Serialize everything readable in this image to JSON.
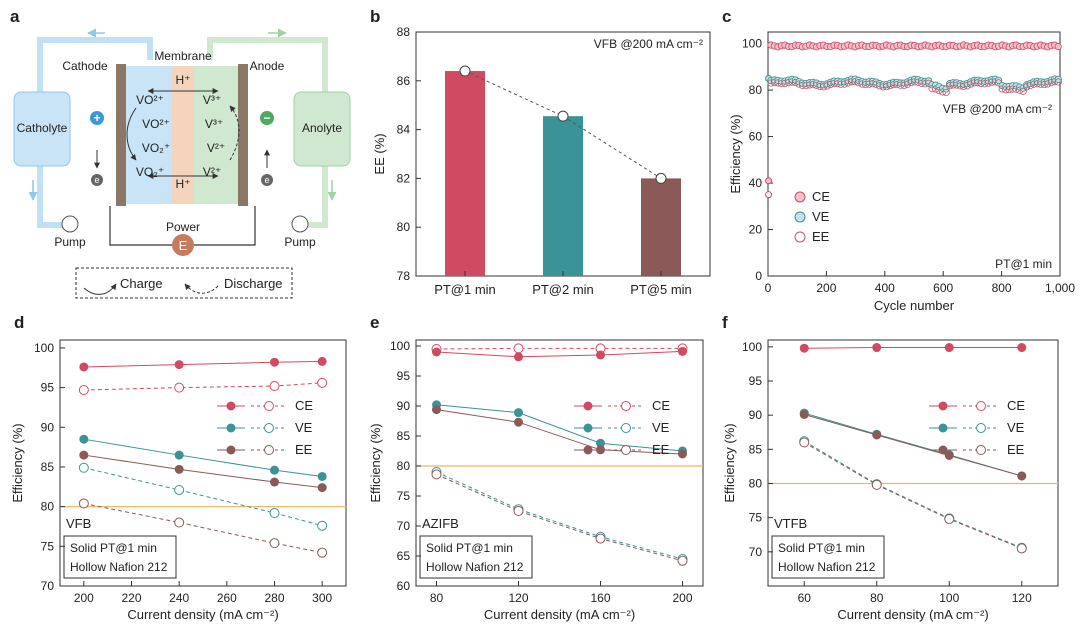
{
  "panels": {
    "a": {
      "label": "a",
      "cathode": "Cathode",
      "anode": "Anode",
      "membrane": "Membrane",
      "catholyte": "Catholyte",
      "anolyte": "Anolyte",
      "pump_left": "Pump",
      "pump_right": "Pump",
      "power": "Power",
      "power_symbol": "E",
      "plus": "+",
      "minus": "−",
      "electron": "e",
      "h_top": "H⁺",
      "h_bottom": "H⁺",
      "left_species": [
        "VO²⁺",
        "VO²⁺",
        "VO₂⁺",
        "VO₂⁺"
      ],
      "right_species": [
        "V³⁺",
        "V³⁺",
        "V²⁺",
        "V²⁺"
      ],
      "legend_charge": "Charge",
      "legend_discharge": "Discharge",
      "colors": {
        "cathode": "#c9e4f6",
        "anode": "#cfe8cf",
        "membrane": "#f5d4bd",
        "electrode": "#8a7766",
        "power": "#c87a60"
      }
    }
  },
  "chart_data": [
    {
      "id": "b",
      "label": "b",
      "type": "bar",
      "title": "VFB @200 mA cm⁻²",
      "xlabel": "",
      "ylabel": "EE (%)",
      "categories": [
        "PT@1 min",
        "PT@2 min",
        "PT@5 min"
      ],
      "values": [
        86.4,
        84.55,
        82.0
      ],
      "colors": [
        "#d04a62",
        "#3a9397",
        "#8b5a58"
      ],
      "ylim": [
        78,
        88
      ],
      "yticks": [
        78,
        80,
        82,
        84,
        86,
        88
      ]
    },
    {
      "id": "c",
      "label": "c",
      "type": "scatter",
      "title": "VFB @200 mA cm⁻²",
      "annotation": "PT@1 min",
      "xlabel": "Cycle number",
      "ylabel": "Efficiency (%)",
      "xlim": [
        0,
        1000
      ],
      "ylim": [
        0,
        105
      ],
      "xticks": [
        0,
        200,
        400,
        600,
        800,
        1000
      ],
      "xtick_labels": [
        "0",
        "200",
        "400",
        "600",
        "800",
        "1,000"
      ],
      "yticks": [
        0,
        20,
        40,
        60,
        80,
        100
      ],
      "series": [
        {
          "name": "CE",
          "approx_mean": 99,
          "first_cycle": 41,
          "color": "#d04a62",
          "fill": "#f2c0c8"
        },
        {
          "name": "VE",
          "approx_mean": 83.5,
          "first_cycle": 85,
          "color": "#3a9397",
          "fill": "#c5e3e4"
        },
        {
          "name": "EE",
          "approx_mean": 82.5,
          "first_cycle": 35,
          "color": "#c0566a",
          "fill": "#ffffff"
        }
      ],
      "legend": [
        "CE",
        "VE",
        "EE"
      ]
    },
    {
      "id": "d",
      "label": "d",
      "type": "line",
      "system": "VFB",
      "note1": "Solid PT@1 min",
      "note2": "Hollow Nafion 212",
      "xlabel": "Current density (mA cm⁻²)",
      "ylabel": "Efficiency (%)",
      "x": [
        200,
        240,
        280,
        300
      ],
      "xlim": [
        190,
        310
      ],
      "ylim": [
        70,
        101
      ],
      "xticks": [
        200,
        220,
        240,
        260,
        280,
        300
      ],
      "yticks": [
        70,
        75,
        80,
        85,
        90,
        95,
        100
      ],
      "ref_line": 80,
      "series": [
        {
          "name": "CE",
          "solid": [
            97.6,
            97.9,
            98.2,
            98.3
          ],
          "hollow": [
            94.7,
            95.0,
            95.2,
            95.6
          ]
        },
        {
          "name": "VE",
          "solid": [
            88.5,
            86.5,
            84.6,
            83.8
          ],
          "hollow": [
            84.9,
            82.1,
            79.2,
            77.6
          ]
        },
        {
          "name": "EE",
          "solid": [
            86.5,
            84.7,
            83.1,
            82.4
          ],
          "hollow": [
            80.4,
            78.0,
            75.4,
            74.2
          ]
        }
      ]
    },
    {
      "id": "e",
      "label": "e",
      "type": "line",
      "system": "AZIFB",
      "note1": "Solid PT@1 min",
      "note2": "Hollow Nafion 212",
      "xlabel": "Current density (mA cm⁻²)",
      "ylabel": "Efficiency (%)",
      "x": [
        80,
        120,
        160,
        200
      ],
      "xlim": [
        70,
        210
      ],
      "ylim": [
        60,
        101
      ],
      "xticks": [
        80,
        120,
        160,
        200
      ],
      "yticks": [
        60,
        65,
        70,
        75,
        80,
        85,
        90,
        95,
        100
      ],
      "ref_line": 80,
      "series": [
        {
          "name": "CE",
          "solid": [
            99.0,
            98.2,
            98.5,
            99.1
          ],
          "hollow": [
            99.5,
            99.6,
            99.6,
            99.6
          ]
        },
        {
          "name": "VE",
          "solid": [
            90.2,
            88.9,
            83.8,
            82.5
          ],
          "hollow": [
            79.0,
            72.8,
            68.2,
            64.5
          ]
        },
        {
          "name": "EE",
          "solid": [
            89.4,
            87.3,
            82.7,
            82.0
          ],
          "hollow": [
            78.6,
            72.5,
            67.9,
            64.2
          ]
        }
      ]
    },
    {
      "id": "f",
      "label": "f",
      "type": "line",
      "system": "VTFB",
      "note1": "Solid PT@1 min",
      "note2": "Hollow Nafion 212",
      "xlabel": "Current density (mA cm⁻²)",
      "ylabel": "Efficiency (%)",
      "x": [
        60,
        80,
        100,
        120
      ],
      "xlim": [
        50,
        130
      ],
      "ylim": [
        65,
        101
      ],
      "xticks": [
        60,
        80,
        100,
        120
      ],
      "yticks": [
        70,
        75,
        80,
        85,
        90,
        95,
        100
      ],
      "ref_line": 80,
      "series": [
        {
          "name": "CE",
          "solid": [
            99.8,
            99.9,
            99.9,
            99.9
          ],
          "hollow": []
        },
        {
          "name": "VE",
          "solid": [
            90.3,
            87.2,
            84.2,
            81.1
          ],
          "hollow": [
            86.2,
            79.9,
            74.9,
            70.6
          ]
        },
        {
          "name": "EE",
          "solid": [
            90.1,
            87.1,
            84.1,
            81.1
          ],
          "hollow": [
            86.0,
            79.8,
            74.8,
            70.5
          ]
        }
      ]
    }
  ],
  "colors": {
    "CE": "#d04a62",
    "VE": "#3a9397",
    "EE": "#8b5a58",
    "ref": "#e8b96a"
  }
}
